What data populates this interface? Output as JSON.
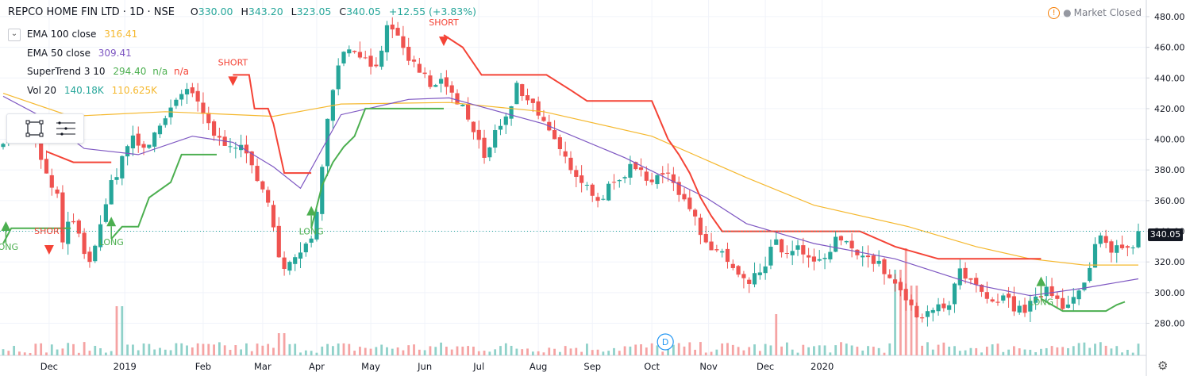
{
  "header": {
    "title": "REPCO HOME FIN LTD · 1D · NSE",
    "open_label": "O",
    "open": "330.00",
    "high_label": "H",
    "high": "343.20",
    "low_label": "L",
    "low": "323.05",
    "close_label": "C",
    "close": "340.05",
    "change": "+12.55 (+3.83%)",
    "market_status": "Market Closed"
  },
  "legend": {
    "ema100_label": "EMA 100 close",
    "ema100_value": "316.41",
    "ema50_label": "EMA 50 close",
    "ema50_value": "309.41",
    "supertrend_label": "SuperTrend 3 10",
    "supertrend_value": "294.40",
    "supertrend_na1": "n/a",
    "supertrend_na2": "n/a",
    "vol_label": "Vol 20",
    "vol_value1": "140.18K",
    "vol_value2": "110.625K"
  },
  "last_price_tag": "340.05",
  "colors": {
    "up": "#26a69a",
    "down": "#ef5350",
    "ema100": "#f5b82e",
    "ema50": "#7e57c2",
    "st_up": "#4caf50",
    "st_down": "#f44336",
    "vol_up": "#8fd1c9",
    "vol_down": "#f5a3a3"
  },
  "icons": [
    "collapse-arrow-icon",
    "warning-icon",
    "rectangle-tool-icon",
    "menu-lines-icon",
    "gear-icon",
    "dividend-icon"
  ],
  "chart_data": {
    "type": "candlestick",
    "y_ticks": [
      280,
      300,
      320,
      340,
      360,
      380,
      400,
      420,
      440,
      460,
      480
    ],
    "ylim": [
      262,
      487
    ],
    "x_labels": [
      "Dec",
      "2019",
      "Feb",
      "Mar",
      "Apr",
      "May",
      "Jun",
      "Jul",
      "Aug",
      "Sep",
      "Oct",
      "Nov",
      "Dec",
      "2020"
    ],
    "close_path": [
      [
        0,
        400
      ],
      [
        4,
        408
      ],
      [
        8,
        404
      ],
      [
        12,
        396
      ],
      [
        15,
        383
      ],
      [
        17,
        370
      ],
      [
        20,
        362
      ],
      [
        22,
        335
      ],
      [
        25,
        348
      ],
      [
        27,
        342
      ],
      [
        29,
        330
      ],
      [
        32,
        318
      ],
      [
        35,
        340
      ],
      [
        38,
        355
      ],
      [
        40,
        372
      ],
      [
        42,
        378
      ],
      [
        45,
        394
      ],
      [
        48,
        400
      ],
      [
        51,
        395
      ],
      [
        53,
        392
      ],
      [
        56,
        405
      ],
      [
        59,
        412
      ],
      [
        62,
        420
      ],
      [
        65,
        425
      ],
      [
        68,
        432
      ],
      [
        70,
        430
      ],
      [
        73,
        418
      ],
      [
        76,
        410
      ],
      [
        79,
        400
      ],
      [
        82,
        398
      ],
      [
        85,
        398
      ],
      [
        87,
        395
      ],
      [
        90,
        390
      ],
      [
        93,
        380
      ],
      [
        96,
        365
      ],
      [
        99,
        352
      ],
      [
        101,
        330
      ],
      [
        104,
        318
      ],
      [
        107,
        320
      ],
      [
        110,
        325
      ],
      [
        113,
        332
      ],
      [
        115,
        340
      ],
      [
        117,
        370
      ],
      [
        119,
        400
      ],
      [
        121,
        425
      ],
      [
        123,
        445
      ],
      [
        125,
        455
      ],
      [
        128,
        460
      ],
      [
        131,
        458
      ],
      [
        134,
        452
      ],
      [
        137,
        445
      ],
      [
        140,
        460
      ],
      [
        142,
        472
      ],
      [
        145,
        468
      ],
      [
        148,
        458
      ],
      [
        151,
        450
      ],
      [
        154,
        445
      ],
      [
        157,
        438
      ],
      [
        159,
        432
      ],
      [
        161,
        436
      ],
      [
        163,
        440
      ],
      [
        165,
        432
      ],
      [
        167,
        423
      ],
      [
        170,
        420
      ],
      [
        173,
        408
      ],
      [
        176,
        398
      ],
      [
        178,
        388
      ],
      [
        180,
        395
      ],
      [
        182,
        405
      ],
      [
        185,
        410
      ],
      [
        188,
        420
      ],
      [
        190,
        438
      ],
      [
        192,
        430
      ],
      [
        195,
        425
      ],
      [
        198,
        418
      ],
      [
        200,
        410
      ],
      [
        203,
        400
      ],
      [
        206,
        392
      ],
      [
        209,
        385
      ],
      [
        212,
        378
      ],
      [
        215,
        372
      ],
      [
        218,
        365
      ],
      [
        221,
        360
      ],
      [
        224,
        368
      ],
      [
        227,
        372
      ],
      [
        230,
        378
      ],
      [
        233,
        384
      ],
      [
        236,
        380
      ],
      [
        239,
        372
      ],
      [
        242,
        378
      ],
      [
        245,
        376
      ],
      [
        248,
        372
      ],
      [
        251,
        364
      ],
      [
        254,
        356
      ],
      [
        256,
        348
      ],
      [
        258,
        338
      ],
      [
        260,
        330
      ],
      [
        263,
        325
      ],
      [
        265,
        332
      ],
      [
        267,
        322
      ],
      [
        270,
        315
      ],
      [
        273,
        308
      ],
      [
        276,
        306
      ],
      [
        279,
        312
      ],
      [
        282,
        318
      ],
      [
        285,
        334
      ],
      [
        288,
        328
      ],
      [
        291,
        322
      ],
      [
        294,
        330
      ],
      [
        297,
        322
      ],
      [
        300,
        318
      ],
      [
        303,
        322
      ],
      [
        306,
        326
      ],
      [
        309,
        338
      ],
      [
        311,
        332
      ],
      [
        314,
        330
      ],
      [
        317,
        326
      ],
      [
        320,
        322
      ],
      [
        323,
        320
      ],
      [
        326,
        314
      ],
      [
        329,
        306
      ],
      [
        332,
        300
      ],
      [
        335,
        294
      ],
      [
        337,
        284
      ],
      [
        340,
        282
      ],
      [
        343,
        290
      ],
      [
        346,
        294
      ],
      [
        349,
        290
      ],
      [
        351,
        292
      ],
      [
        353,
        316
      ],
      [
        356,
        308
      ],
      [
        359,
        306
      ],
      [
        362,
        298
      ],
      [
        365,
        292
      ],
      [
        368,
        292
      ],
      [
        371,
        298
      ],
      [
        374,
        290
      ],
      [
        377,
        288
      ],
      [
        380,
        292
      ],
      [
        383,
        296
      ],
      [
        386,
        304
      ],
      [
        389,
        298
      ],
      [
        392,
        292
      ],
      [
        395,
        296
      ],
      [
        398,
        300
      ],
      [
        401,
        308
      ],
      [
        404,
        330
      ],
      [
        406,
        336
      ],
      [
        409,
        328
      ],
      [
        412,
        330
      ],
      [
        415,
        328
      ],
      [
        418,
        332
      ],
      [
        420,
        340
      ]
    ],
    "series": [
      {
        "name": "EMA 100 close",
        "type": "line",
        "points": [
          [
            0,
            430
          ],
          [
            25,
            415
          ],
          [
            60,
            418
          ],
          [
            100,
            415
          ],
          [
            125,
            423
          ],
          [
            165,
            424
          ],
          [
            200,
            418
          ],
          [
            240,
            402
          ],
          [
            275,
            375
          ],
          [
            300,
            357
          ],
          [
            335,
            343
          ],
          [
            360,
            330
          ],
          [
            380,
            322
          ],
          [
            400,
            318
          ],
          [
            420,
            318
          ]
        ]
      },
      {
        "name": "EMA 50 close",
        "type": "line",
        "points": [
          [
            0,
            428
          ],
          [
            15,
            414
          ],
          [
            30,
            394
          ],
          [
            50,
            390
          ],
          [
            70,
            402
          ],
          [
            85,
            398
          ],
          [
            100,
            382
          ],
          [
            110,
            368
          ],
          [
            125,
            416
          ],
          [
            150,
            426
          ],
          [
            165,
            427
          ],
          [
            200,
            410
          ],
          [
            230,
            388
          ],
          [
            260,
            362
          ],
          [
            275,
            345
          ],
          [
            300,
            332
          ],
          [
            330,
            322
          ],
          [
            360,
            305
          ],
          [
            380,
            298
          ],
          [
            400,
            303
          ],
          [
            420,
            309
          ]
        ]
      },
      {
        "name": "SuperTrend 3 10",
        "type": "stepline",
        "segments": [
          {
            "dir": "up",
            "points": [
              [
                0,
                332
              ],
              [
                3,
                342
              ],
              [
                25,
                342
              ]
            ]
          },
          {
            "dir": "down",
            "points": [
              [
                16,
                392
              ],
              [
                26,
                385
              ],
              [
                40,
                385
              ]
            ]
          },
          {
            "dir": "up",
            "points": [
              [
                40,
                335
              ],
              [
                44,
                343
              ],
              [
                50,
                343
              ],
              [
                54,
                362
              ],
              [
                62,
                372
              ],
              [
                66,
                390
              ],
              [
                79,
                390
              ]
            ]
          },
          {
            "dir": "down",
            "points": [
              [
                85,
                442
              ],
              [
                91,
                442
              ],
              [
                93,
                420
              ],
              [
                98,
                420
              ],
              [
                100,
                410
              ],
              [
                104,
                378
              ],
              [
                114,
                378
              ]
            ]
          },
          {
            "dir": "up",
            "points": [
              [
                114,
                342
              ],
              [
                118,
                370
              ],
              [
                122,
                385
              ],
              [
                126,
                395
              ],
              [
                130,
                402
              ],
              [
                134,
                420
              ],
              [
                140,
                420
              ],
              [
                163,
                420
              ]
            ]
          },
          {
            "dir": "down",
            "points": [
              [
                163,
                468
              ],
              [
                170,
                460
              ],
              [
                177,
                442
              ],
              [
                201,
                442
              ],
              [
                210,
                432
              ],
              [
                216,
                425
              ],
              [
                240,
                425
              ],
              [
                246,
                400
              ],
              [
                250,
                390
              ],
              [
                254,
                378
              ],
              [
                258,
                362
              ],
              [
                262,
                350
              ],
              [
                266,
                340
              ],
              [
                317,
                340
              ],
              [
                330,
                330
              ],
              [
                346,
                322
              ],
              [
                384,
                322
              ]
            ]
          },
          {
            "dir": "up",
            "points": [
              [
                384,
                296
              ],
              [
                392,
                288
              ],
              [
                400,
                288
              ],
              [
                408,
                288
              ],
              [
                412,
                292
              ],
              [
                415,
                294
              ]
            ]
          }
        ]
      },
      {
        "name": "Vol 20",
        "type": "volume"
      }
    ],
    "signals": [
      {
        "label": "LONG",
        "type": "long"
      },
      {
        "label": "SHORT",
        "type": "short"
      },
      {
        "label": "LONG",
        "type": "long"
      },
      {
        "label": "SHORT",
        "type": "short"
      },
      {
        "label": "LONG",
        "type": "long"
      },
      {
        "label": "SHORT",
        "type": "short"
      },
      {
        "label": "LONG",
        "type": "long"
      }
    ],
    "signal_bars": [
      1,
      17,
      40,
      85,
      114,
      163,
      384
    ],
    "dividend_marker": "D",
    "volume_spikes": [
      [
        14,
        62
      ],
      [
        95,
        52
      ],
      [
        110,
        108
      ],
      [
        111,
        135
      ],
      [
        112,
        88
      ],
      [
        34,
        28
      ]
    ],
    "grid": true,
    "y_axis_position": "right"
  }
}
